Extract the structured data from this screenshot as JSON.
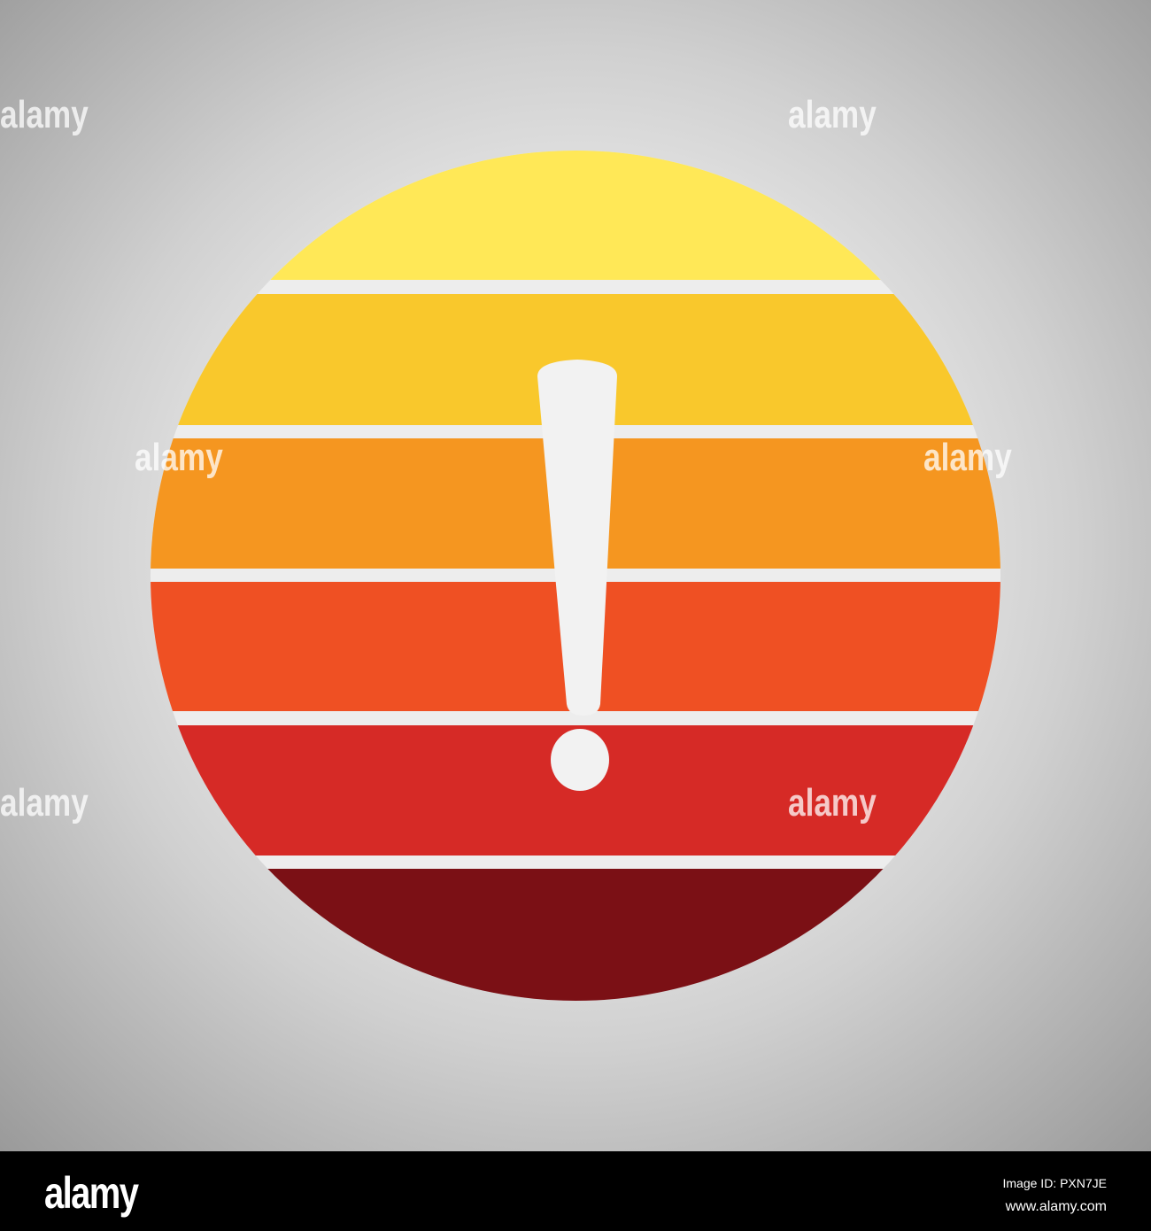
{
  "stripe_colors": [
    "#FFE857",
    "#F9C82C",
    "#F59620",
    "#EF5023",
    "#D62A26",
    "#7B1015"
  ],
  "gap_color": "#EDEDED",
  "symbol": "exclamation-mark",
  "symbol_color": "#F2F2F2",
  "watermark": "alamy",
  "footer": {
    "logo": "alamy",
    "image_id": "Image ID: PXN7JE",
    "website": "www.alamy.com"
  }
}
